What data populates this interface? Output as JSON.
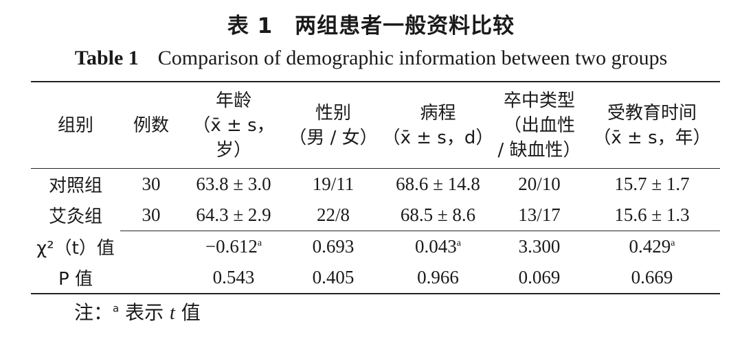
{
  "title_zh": "表 1　两组患者一般资料比较",
  "title_en_lead": "Table 1",
  "title_en_rest": "Comparison of demographic information between two groups",
  "columns": [
    {
      "lines": [
        "组别"
      ]
    },
    {
      "lines": [
        "例数"
      ]
    },
    {
      "lines": [
        "年龄",
        "（x̄ ± s，",
        "岁）"
      ]
    },
    {
      "lines": [
        "性别",
        "（男 / 女）"
      ]
    },
    {
      "lines": [
        "病程",
        "（x̄ ± s，d）"
      ]
    },
    {
      "lines": [
        "卒中类型",
        "（出血性",
        "/ 缺血性）"
      ]
    },
    {
      "lines": [
        "受教育时间",
        "（x̄ ± s，年）"
      ]
    }
  ],
  "rows": [
    {
      "group": "对照组",
      "n": "30",
      "age": "63.8 ± 3.0",
      "sex": "19/11",
      "course": "68.6 ± 14.8",
      "stroke": "20/10",
      "edu": "15.7 ± 1.7"
    },
    {
      "group": "艾灸组",
      "n": "30",
      "age": "64.3 ± 2.9",
      "sex": "22/8",
      "course": "68.5 ± 8.6",
      "stroke": "13/17",
      "edu": "15.6 ± 1.3"
    }
  ],
  "stat_rows": [
    {
      "label": "χ²（t）值",
      "n": "",
      "age": "−0.612",
      "age_sup": "a",
      "sex": "0.693",
      "course": "0.043",
      "course_sup": "a",
      "stroke": "3.300",
      "edu": "0.429",
      "edu_sup": "a"
    },
    {
      "label": "P 值",
      "n": "",
      "age": "0.543",
      "age_sup": "",
      "sex": "0.405",
      "course": "0.966",
      "course_sup": "",
      "stroke": "0.069",
      "edu": "0.669",
      "edu_sup": ""
    }
  ],
  "note": {
    "prefix": "注：",
    "sup": "a",
    "text_before": " 表示 ",
    "italic": "t",
    "text_after": " 值"
  }
}
